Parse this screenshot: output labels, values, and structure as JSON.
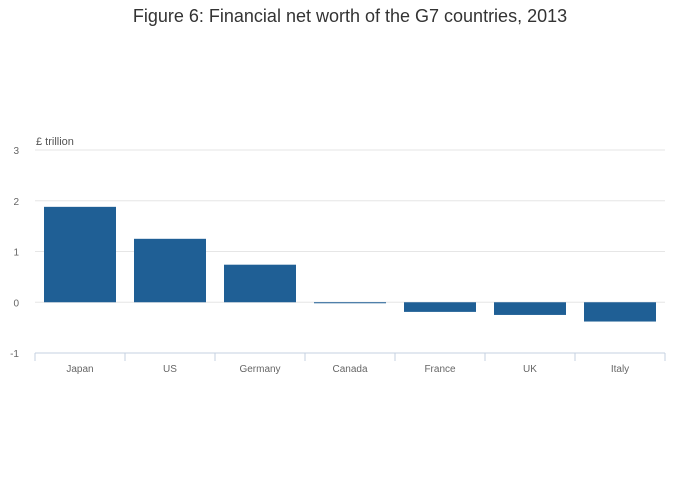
{
  "chart_data": {
    "type": "bar",
    "title": "Figure 6: Financial net worth of the G7 countries, 2013",
    "ylabel": "£ trillion",
    "xlabel": "",
    "categories": [
      "Japan",
      "US",
      "Germany",
      "Canada",
      "France",
      "UK",
      "Italy"
    ],
    "values": [
      1.88,
      1.25,
      0.74,
      -0.02,
      -0.19,
      -0.25,
      -0.38
    ],
    "ylim": [
      -1,
      3
    ],
    "yticks": [
      -1,
      0,
      1,
      2,
      3
    ],
    "grid": true,
    "colors": {
      "bar": "#1f5f95",
      "grid": "#e6e6e6",
      "axis": "#c4d0e0"
    }
  }
}
